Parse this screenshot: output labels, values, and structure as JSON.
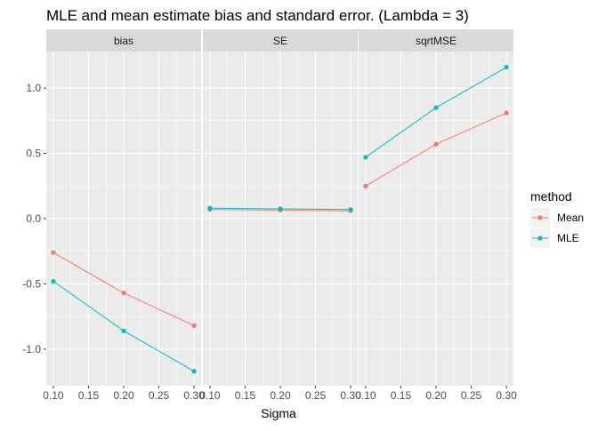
{
  "chart_data": {
    "type": "line",
    "title": "MLE and mean estimate bias and standard error. (Lambda = 3)",
    "xlabel": "Sigma",
    "ylabel": "",
    "x": [
      0.1,
      0.2,
      0.3
    ],
    "x_ticks": [
      "0.10",
      "0.15",
      "0.20",
      "0.25",
      "0.30"
    ],
    "x_tick_values": [
      0.1,
      0.15,
      0.2,
      0.25,
      0.3
    ],
    "xlim": [
      0.09,
      0.31
    ],
    "y_ticks": [
      "-1.0",
      "-0.5",
      "0.0",
      "0.5",
      "1.0"
    ],
    "y_tick_values": [
      -1.0,
      -0.5,
      0.0,
      0.5,
      1.0
    ],
    "ylim": [
      -1.28,
      1.28
    ],
    "grid": true,
    "legend": {
      "title": "method",
      "placement": "right",
      "entries": [
        "Mean",
        "MLE"
      ]
    },
    "colors": {
      "Mean": "#F8766D",
      "MLE": "#00BFC4"
    },
    "panels": [
      {
        "label": "bias",
        "series": [
          {
            "name": "Mean",
            "values": [
              -0.26,
              -0.57,
              -0.82
            ]
          },
          {
            "name": "MLE",
            "values": [
              -0.48,
              -0.86,
              -1.17
            ]
          }
        ]
      },
      {
        "label": "SE",
        "series": [
          {
            "name": "Mean",
            "values": [
              0.07,
              0.065,
              0.06
            ]
          },
          {
            "name": "MLE",
            "values": [
              0.08,
              0.075,
              0.07
            ]
          }
        ]
      },
      {
        "label": "sqrtMSE",
        "series": [
          {
            "name": "Mean",
            "values": [
              0.25,
              0.57,
              0.81
            ]
          },
          {
            "name": "MLE",
            "values": [
              0.47,
              0.85,
              1.16
            ]
          }
        ]
      }
    ]
  }
}
